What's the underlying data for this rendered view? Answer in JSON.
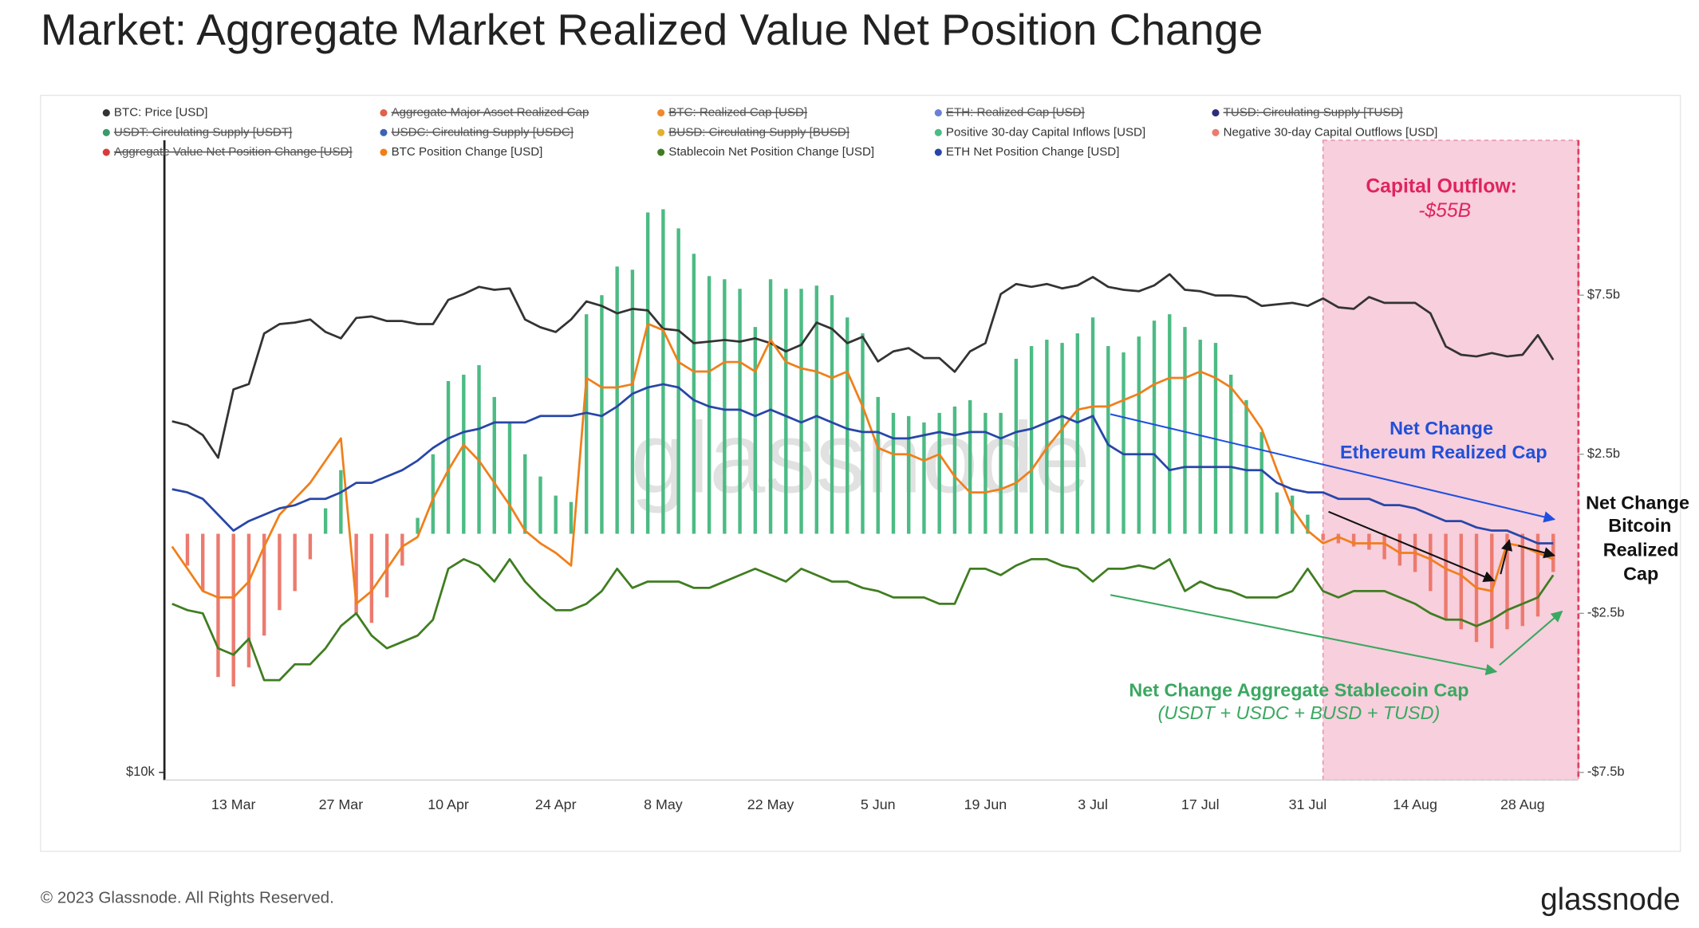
{
  "chart_data": {
    "type": "bar_line",
    "title": "Market: Aggregate Market Realized Value Net Position Change",
    "watermark": "glassnode",
    "footer": "© 2023 Glassnode. All Rights Reserved.",
    "logo": "glassnode",
    "annotations": {
      "outflow_title": "Capital Outflow:",
      "outflow_value": "-$55B",
      "eth_1": "Net Change",
      "eth_2": "Ethereum Realized Cap",
      "btc_1": "Net Change",
      "btc_2": "Bitcoin",
      "btc_3": "Realized",
      "btc_4": "Cap",
      "stable_1": "Net Change Aggregate Stablecoin Cap",
      "stable_2": "(USDT + USDC + BUSD + TUSD)"
    },
    "categories": [
      null,
      null,
      null,
      null,
      "13 Mar",
      null,
      null,
      null,
      null,
      null,
      null,
      "27 Mar",
      null,
      null,
      null,
      null,
      null,
      null,
      "10 Apr",
      null,
      null,
      null,
      null,
      null,
      null,
      "24 Apr",
      null,
      null,
      null,
      null,
      null,
      null,
      "8 May",
      null,
      null,
      null,
      null,
      null,
      null,
      "22 May",
      null,
      null,
      null,
      null,
      null,
      null,
      "5 Jun",
      null,
      null,
      null,
      null,
      null,
      null,
      "19 Jun",
      null,
      null,
      null,
      null,
      null,
      null,
      "3 Jul",
      null,
      null,
      null,
      null,
      null,
      null,
      "17 Jul",
      null,
      null,
      null,
      null,
      null,
      null,
      "31 Jul",
      null,
      null,
      null,
      null,
      null,
      null,
      "14 Aug",
      null,
      null,
      null,
      null,
      null,
      null,
      "28 Aug",
      null,
      null
    ],
    "ylim": [
      10000,
      42500
    ],
    "ylog": true,
    "yticks": [
      {
        "value": 10000,
        "label": "$10k"
      }
    ],
    "y2lim": [
      -7.5,
      12.3
    ],
    "y2ticks": [
      {
        "value": 7.5,
        "label": "$7.5b"
      },
      {
        "value": 2.5,
        "label": "$2.5b"
      },
      {
        "value": -2.5,
        "label": "-$2.5b"
      },
      {
        "value": -7.5,
        "label": "-$7.5b"
      }
    ],
    "grid": false,
    "series": [
      {
        "name": "BTC: Price [USD]",
        "color": "#333333",
        "style": "line",
        "axis": "y",
        "values": [
          22400,
          22200,
          21700,
          20600,
          24100,
          24400,
          27400,
          28000,
          28100,
          28300,
          27500,
          27100,
          28400,
          28500,
          28200,
          28200,
          28000,
          28000,
          29600,
          30000,
          30500,
          30300,
          30400,
          28300,
          27800,
          27500,
          28300,
          29500,
          29200,
          28700,
          29000,
          28900,
          27700,
          27600,
          26800,
          26900,
          27000,
          26900,
          27100,
          26800,
          26300,
          26700,
          28100,
          27700,
          26800,
          27200,
          25700,
          26300,
          26500,
          25900,
          25900,
          25100,
          26300,
          26800,
          30000,
          30700,
          30500,
          30700,
          30400,
          30600,
          31200,
          30500,
          30300,
          30200,
          30600,
          31400,
          30300,
          30200,
          29900,
          29900,
          29800,
          29200,
          29300,
          29400,
          29200,
          29700,
          29100,
          29000,
          29800,
          29400,
          29400,
          29400,
          28700,
          26600,
          26100,
          26000,
          26200,
          26000,
          26100,
          27300,
          25800
        ]
      },
      {
        "name": "Aggregate Major Asset Realized Cap",
        "color": "#e0604a",
        "hidden": true
      },
      {
        "name": "BTC: Realized Cap [USD]",
        "color": "#f0892a",
        "hidden": true
      },
      {
        "name": "ETH: Realized Cap [USD]",
        "color": "#6b7fd8",
        "hidden": true
      },
      {
        "name": "TUSD: Circulating Supply [TUSD]",
        "color": "#2b2f7a",
        "hidden": true
      },
      {
        "name": "USDT: Circulating Supply [USDT]",
        "color": "#3a9a6a",
        "hidden": true
      },
      {
        "name": "USDC: Circulating Supply [USDC]",
        "color": "#3c63b5",
        "hidden": true
      },
      {
        "name": "BUSD: Circulating Supply [BUSD]",
        "color": "#e0b030",
        "hidden": true
      },
      {
        "name": "Positive 30-day Capital Inflows [USD]",
        "color": "#4cbb84",
        "style": "bar",
        "axis": "y2",
        "values": [
          null,
          null,
          null,
          null,
          null,
          null,
          null,
          null,
          null,
          null,
          0.8,
          2,
          null,
          null,
          null,
          null,
          0.5,
          2.5,
          4.8,
          5,
          5.3,
          4.3,
          3.5,
          2.5,
          1.8,
          1.2,
          1,
          6.9,
          7.5,
          8.4,
          8.3,
          10.1,
          10.2,
          9.6,
          8.8,
          8.1,
          8,
          7.7,
          6.5,
          8,
          7.7,
          7.7,
          7.8,
          7.5,
          6.8,
          6.3,
          4.3,
          3.8,
          3.7,
          3.5,
          3.8,
          4,
          4.2,
          3.8,
          3.8,
          5.5,
          5.9,
          6.1,
          6,
          6.3,
          6.8,
          5.9,
          5.7,
          6.2,
          6.7,
          6.9,
          6.5,
          6.1,
          6,
          5,
          4.2,
          3.2,
          1.3,
          1.2,
          0.6,
          null,
          null,
          null,
          null,
          null,
          null,
          null,
          null,
          null,
          null,
          null,
          null,
          null,
          null,
          null,
          null
        ]
      },
      {
        "name": "Negative 30-day Capital Outflows [USD]",
        "color": "#ec7a6e",
        "style": "bar",
        "axis": "y2",
        "values": [
          null,
          -1,
          -1.8,
          -4.5,
          -4.8,
          -4.2,
          -3.2,
          -2.4,
          -1.8,
          -0.8,
          null,
          null,
          -2.5,
          -2.8,
          -2,
          -1,
          null,
          null,
          null,
          null,
          null,
          null,
          null,
          null,
          null,
          null,
          null,
          null,
          null,
          null,
          null,
          null,
          null,
          null,
          null,
          null,
          null,
          null,
          null,
          null,
          null,
          null,
          null,
          null,
          null,
          null,
          null,
          null,
          null,
          null,
          null,
          null,
          null,
          null,
          null,
          null,
          null,
          null,
          null,
          null,
          null,
          null,
          null,
          null,
          null,
          null,
          null,
          null,
          null,
          null,
          null,
          null,
          null,
          null,
          null,
          -0.2,
          -0.3,
          -0.4,
          -0.5,
          -0.8,
          -1,
          -1.2,
          -1.8,
          -2.7,
          -3,
          -3.4,
          -3.6,
          -3,
          -2.9,
          -2.6,
          -1.2
        ]
      },
      {
        "name": "Aggregate Value Net Position Change [USD]",
        "color": "#d93a3a",
        "hidden": true
      },
      {
        "name": "BTC Position Change [USD]",
        "color": "#f07f1a",
        "style": "line",
        "axis": "y2",
        "values": [
          -0.4,
          -1.1,
          -1.8,
          -2,
          -2,
          -1.5,
          -0.4,
          0.6,
          1.1,
          1.6,
          2.3,
          3,
          -2.2,
          -1.8,
          -1.1,
          -0.4,
          -0.1,
          1.1,
          2,
          2.8,
          2.3,
          1.6,
          0.9,
          0.1,
          -0.3,
          -0.6,
          -1,
          4.9,
          4.6,
          4.6,
          4.7,
          6.6,
          6.4,
          5.4,
          5.1,
          5.1,
          5.4,
          5.4,
          5.1,
          6.1,
          5.4,
          5.2,
          5.1,
          4.9,
          5.1,
          4,
          2.7,
          2.5,
          2.5,
          2.3,
          2.5,
          1.8,
          1.3,
          1.3,
          1.4,
          1.6,
          2,
          2.7,
          3.3,
          3.9,
          4,
          4,
          4.2,
          4.4,
          4.7,
          4.9,
          4.9,
          5.1,
          4.9,
          4.6,
          4,
          3.3,
          2,
          0.8,
          0.1,
          -0.3,
          -0.1,
          -0.3,
          -0.3,
          -0.3,
          -0.6,
          -0.6,
          -0.8,
          -1.1,
          -1.3,
          -1.7,
          -1.8,
          -0.3,
          -0.4,
          -0.6,
          -0.8
        ]
      },
      {
        "name": "Stablecoin Net Position Change [USD]",
        "color": "#3f7d20",
        "style": "line",
        "axis": "y2",
        "values": [
          -2.2,
          -2.4,
          -2.5,
          -3.6,
          -3.8,
          -3.3,
          -4.6,
          -4.6,
          -4.1,
          -4.1,
          -3.6,
          -2.9,
          -2.5,
          -3.2,
          -3.6,
          -3.4,
          -3.2,
          -2.7,
          -1.1,
          -0.8,
          -1,
          -1.5,
          -0.8,
          -1.5,
          -2,
          -2.4,
          -2.4,
          -2.2,
          -1.8,
          -1.1,
          -1.7,
          -1.5,
          -1.5,
          -1.5,
          -1.7,
          -1.7,
          -1.5,
          -1.3,
          -1.1,
          -1.3,
          -1.5,
          -1.1,
          -1.3,
          -1.5,
          -1.5,
          -1.7,
          -1.8,
          -2,
          -2,
          -2,
          -2.2,
          -2.2,
          -1.1,
          -1.1,
          -1.3,
          -1,
          -0.8,
          -0.8,
          -1,
          -1.1,
          -1.5,
          -1.1,
          -1.1,
          -1,
          -1.1,
          -0.8,
          -1.8,
          -1.5,
          -1.7,
          -1.8,
          -2,
          -2,
          -2,
          -1.8,
          -1.1,
          -1.8,
          -2,
          -1.8,
          -1.8,
          -1.8,
          -2,
          -2.2,
          -2.5,
          -2.7,
          -2.7,
          -2.9,
          -2.7,
          -2.4,
          -2.2,
          -2,
          -1.3
        ]
      },
      {
        "name": "ETH Net Position Change [USD]",
        "color": "#2846a8",
        "style": "line",
        "axis": "y2",
        "values": [
          1.4,
          1.3,
          1.1,
          0.6,
          0.1,
          0.4,
          0.6,
          0.8,
          0.9,
          1.1,
          1.1,
          1.3,
          1.6,
          1.6,
          1.8,
          2,
          2.3,
          2.7,
          3,
          3.2,
          3.3,
          3.5,
          3.5,
          3.5,
          3.7,
          3.7,
          3.7,
          3.8,
          3.7,
          4,
          4.4,
          4.6,
          4.7,
          4.6,
          4.2,
          4,
          3.9,
          3.9,
          3.7,
          3.9,
          3.7,
          3.5,
          3.7,
          3.5,
          3.3,
          3.2,
          3.2,
          3,
          3,
          3.1,
          3.2,
          3.1,
          3.2,
          3.2,
          3,
          3.2,
          3.3,
          3.5,
          3.7,
          3.5,
          3.7,
          2.8,
          2.5,
          2.5,
          2.5,
          2,
          2.1,
          2.1,
          2.1,
          2.1,
          2,
          2,
          1.6,
          1.4,
          1.3,
          1.3,
          1.1,
          1.1,
          1.1,
          0.9,
          0.9,
          0.8,
          0.6,
          0.4,
          0.4,
          0.2,
          0.1,
          0.1,
          -0.1,
          -0.3,
          -0.3
        ]
      }
    ]
  }
}
